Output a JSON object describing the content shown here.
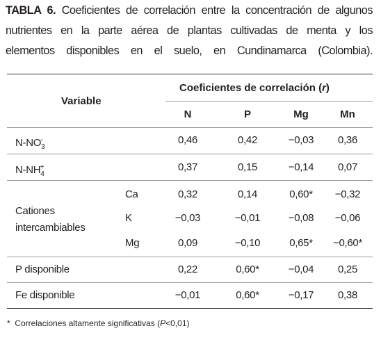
{
  "caption": {
    "label": "TABLA 6.",
    "lines": [
      "Coeficientes de correlación entre la concentración de algunos",
      "nutrientes en la parte aérea de plantas cultivadas de menta y los",
      "elementos disponibles en el suelo, en Cundinamarca (Colombia)."
    ]
  },
  "table": {
    "header": {
      "variable": "Variable",
      "group": {
        "before": "Coeficientes de correlación (",
        "italic": "r",
        "after": ")"
      },
      "columns": [
        "N",
        "P",
        "Mg",
        "Mn"
      ]
    },
    "rows": [
      {
        "variable": {
          "base": "N-NO",
          "sub": "3",
          "sup": "-"
        },
        "values": [
          "0,46",
          "0,42",
          "−0,03",
          "0,36"
        ]
      },
      {
        "variable": {
          "base": "N-NH",
          "sub": "4",
          "sup": "+"
        },
        "values": [
          "0,37",
          "0,15",
          "−0,14",
          "0,07"
        ]
      },
      {
        "group": "Cationes intercambiables",
        "subrows": [
          {
            "cation": "Ca",
            "values": [
              "0,32",
              "0,14",
              "0,60*",
              "−0,32"
            ]
          },
          {
            "cation": "K",
            "values": [
              "−0,03",
              "−0,01",
              "−0,08",
              "−0,06"
            ]
          },
          {
            "cation": "Mg",
            "values": [
              "0,09",
              "−0,10",
              "0,65*",
              "−0,60*"
            ]
          }
        ]
      },
      {
        "variable": "P disponible",
        "values": [
          "0,22",
          "0,60*",
          "−0,04",
          "0,25"
        ]
      },
      {
        "variable": "Fe disponible",
        "values": [
          "−0,01",
          "0,60*",
          "−0,17",
          "0,38"
        ]
      }
    ]
  },
  "footnote": {
    "marker": "*",
    "before": "Correlaciones altamente significativas (",
    "italic": "P",
    "after": "<0,01)"
  }
}
